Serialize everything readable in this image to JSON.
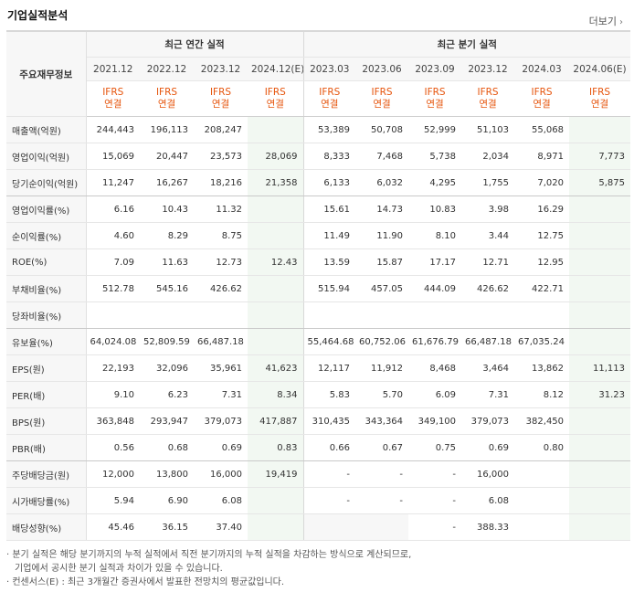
{
  "title": "기업실적분석",
  "more_label": "더보기",
  "row_header_label": "주요재무정보",
  "groups": {
    "annual": "최근 연간 실적",
    "quarter": "최근 분기 실적"
  },
  "periods": [
    "2021.12",
    "2022.12",
    "2023.12",
    "2024.12(E)",
    "2023.03",
    "2023.06",
    "2023.09",
    "2023.12",
    "2024.03",
    "2024.06(E)"
  ],
  "basis": {
    "line1": "IFRS",
    "line2": "연결"
  },
  "rows": [
    {
      "label": "매출액(억원)",
      "values": [
        "244,443",
        "196,113",
        "208,247",
        "",
        "53,389",
        "50,708",
        "52,999",
        "51,103",
        "55,068",
        ""
      ]
    },
    {
      "label": "영업이익(억원)",
      "values": [
        "15,069",
        "20,447",
        "23,573",
        "28,069",
        "8,333",
        "7,468",
        "5,738",
        "2,034",
        "8,971",
        "7,773"
      ]
    },
    {
      "label": "당기순이익(억원)",
      "values": [
        "11,247",
        "16,267",
        "18,216",
        "21,358",
        "6,133",
        "6,032",
        "4,295",
        "1,755",
        "7,020",
        "5,875"
      ]
    },
    {
      "label": "영업이익률(%)",
      "values": [
        "6.16",
        "10.43",
        "11.32",
        "",
        "15.61",
        "14.73",
        "10.83",
        "3.98",
        "16.29",
        ""
      ]
    },
    {
      "label": "순이익률(%)",
      "values": [
        "4.60",
        "8.29",
        "8.75",
        "",
        "11.49",
        "11.90",
        "8.10",
        "3.44",
        "12.75",
        ""
      ]
    },
    {
      "label": "ROE(%)",
      "values": [
        "7.09",
        "11.63",
        "12.73",
        "12.43",
        "13.59",
        "15.87",
        "17.17",
        "12.71",
        "12.95",
        ""
      ]
    },
    {
      "label": "부채비율(%)",
      "values": [
        "512.78",
        "545.16",
        "426.62",
        "",
        "515.94",
        "457.05",
        "444.09",
        "426.62",
        "422.71",
        ""
      ]
    },
    {
      "label": "당좌비율(%)",
      "values": [
        "",
        "",
        "",
        "",
        "",
        "",
        "",
        "",
        "",
        ""
      ]
    },
    {
      "label": "유보율(%)",
      "values": [
        "64,024.08",
        "52,809.59",
        "66,487.18",
        "",
        "55,464.68",
        "60,752.06",
        "61,676.79",
        "66,487.18",
        "67,035.24",
        ""
      ]
    },
    {
      "label": "EPS(원)",
      "values": [
        "22,193",
        "32,096",
        "35,961",
        "41,623",
        "12,117",
        "11,912",
        "8,468",
        "3,464",
        "13,862",
        "11,113"
      ]
    },
    {
      "label": "PER(배)",
      "values": [
        "9.10",
        "6.23",
        "7.31",
        "8.34",
        "5.83",
        "5.70",
        "6.09",
        "7.31",
        "8.12",
        "31.23"
      ]
    },
    {
      "label": "BPS(원)",
      "values": [
        "363,848",
        "293,947",
        "379,073",
        "417,887",
        "310,435",
        "343,364",
        "349,100",
        "379,073",
        "382,450",
        ""
      ]
    },
    {
      "label": "PBR(배)",
      "values": [
        "0.56",
        "0.68",
        "0.69",
        "0.83",
        "0.66",
        "0.67",
        "0.75",
        "0.69",
        "0.80",
        ""
      ]
    },
    {
      "label": "주당배당금(원)",
      "values": [
        "12,000",
        "13,800",
        "16,000",
        "19,419",
        "-",
        "-",
        "-",
        "16,000",
        "",
        ""
      ]
    },
    {
      "label": "시가배당률(%)",
      "values": [
        "5.94",
        "6.90",
        "6.08",
        "",
        "-",
        "-",
        "-",
        "6.08",
        "",
        ""
      ]
    },
    {
      "label": "배당성향(%)",
      "values": [
        "45.46",
        "36.15",
        "37.40",
        "",
        "",
        "",
        "-",
        "388.33",
        "",
        ""
      ]
    }
  ],
  "notes": [
    "분기 실적은 해당 분기까지의 누적 실적에서 직전 분기까지의 누적 실적을 차감하는 방식으로 계산되므로,",
    "기업에서 공시한 분기 실적과 차이가 있을 수 있습니다.",
    "컨센서스(E) : 최근 3개월간 증권사에서 발표한 전망치의 평균값입니다."
  ]
}
